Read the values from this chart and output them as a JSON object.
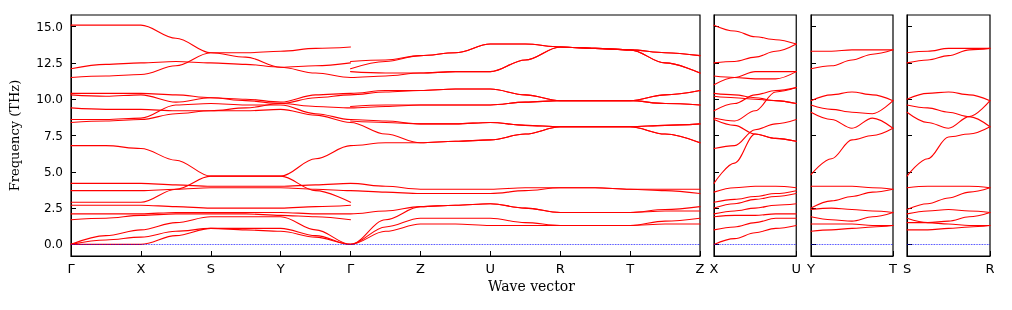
{
  "chart_data": [
    {
      "type": "line",
      "xlabel": "Wave vector",
      "ylabel": "Frequency (THz)",
      "color": "#ff0000",
      "marker": "none",
      "categories": [
        "Γ",
        null,
        "X",
        null,
        "S",
        null,
        "Y",
        null,
        "Γ",
        null,
        "Z",
        null,
        "U",
        null,
        "R",
        null,
        "T",
        null,
        "Z"
      ],
      "ylim": [
        -0.8,
        15.8
      ],
      "yticks": [
        {
          "value": 0,
          "label": "0.0"
        },
        {
          "value": 2.5,
          "label": "2.5"
        },
        {
          "value": 5,
          "label": "5.0"
        },
        {
          "value": 7.5,
          "label": "7.5"
        },
        {
          "value": 10,
          "label": "10.0"
        },
        {
          "value": 12.5,
          "label": "12.5"
        },
        {
          "value": 15,
          "label": "15.0"
        }
      ],
      "ref_lines": [
        {
          "axis": "y",
          "value": 0,
          "color": "#0000ff",
          "line_style": "dotted"
        }
      ],
      "series": [
        {
          "values": [
            0,
            0,
            0,
            0.6,
            1.1,
            1.0,
            0.9,
            0.5,
            0,
            0.9,
            1.4,
            1.4,
            1.3,
            1.3,
            1.3,
            1.3,
            1.3,
            1.4,
            1.4
          ]
        },
        {
          "values": [
            0,
            0.3,
            0.5,
            0.9,
            1.1,
            1.1,
            1.1,
            0.6,
            0,
            1.2,
            1.8,
            1.8,
            1.8,
            1.5,
            1.3,
            1.3,
            1.3,
            1.6,
            1.8
          ]
        },
        {
          "values": [
            0,
            0.6,
            1.0,
            1.5,
            1.9,
            1.9,
            1.9,
            1.0,
            0,
            1.7,
            2.6,
            2.7,
            2.8,
            2.5,
            2.2,
            2.2,
            2.2,
            2.3,
            2.3
          ]
        },
        {
          "values": [
            1.7,
            1.8,
            2.0,
            2.1,
            2.1,
            2.1,
            2.0,
            1.9,
            1.7,
            null,
            null,
            null,
            null,
            null,
            null,
            null,
            null,
            null,
            null
          ]
        },
        {
          "values": [
            2.1,
            2.1,
            2.1,
            2.2,
            2.2,
            2.2,
            2.2,
            2.1,
            2.1,
            2.3,
            2.6,
            2.7,
            2.8,
            2.5,
            2.2,
            2.2,
            2.2,
            2.4,
            2.6
          ]
        },
        {
          "values": [
            2.7,
            2.7,
            2.7,
            2.6,
            2.5,
            2.5,
            2.5,
            2.6,
            2.7,
            null,
            null,
            null,
            null,
            null,
            null,
            null,
            null,
            null,
            null
          ]
        },
        {
          "values": [
            2.9,
            2.9,
            2.9,
            3.8,
            4.7,
            4.7,
            4.7,
            3.7,
            2.9,
            null,
            null,
            null,
            null,
            null,
            null,
            null,
            null,
            null,
            null
          ]
        },
        {
          "values": [
            3.7,
            3.7,
            3.7,
            3.8,
            3.9,
            3.9,
            3.9,
            3.8,
            3.7,
            3.6,
            3.5,
            3.5,
            3.5,
            3.7,
            3.9,
            3.9,
            3.8,
            3.7,
            3.5
          ]
        },
        {
          "values": [
            4.2,
            4.2,
            4.2,
            4.1,
            4.0,
            4.0,
            4.0,
            4.1,
            4.2,
            4.0,
            3.8,
            3.8,
            3.8,
            3.9,
            3.9,
            3.9,
            3.8,
            3.8,
            3.8
          ]
        },
        {
          "values": [
            6.8,
            6.8,
            6.6,
            5.8,
            4.7,
            4.7,
            4.7,
            5.9,
            6.8,
            7.0,
            7.0,
            7.1,
            7.2,
            7.6,
            8.1,
            8.1,
            8.1,
            7.6,
            7.0
          ]
        },
        {
          "values": [
            8.4,
            8.5,
            8.6,
            9.0,
            9.2,
            9.2,
            9.3,
            8.9,
            8.4,
            7.6,
            7.0,
            7.1,
            7.2,
            7.6,
            8.1,
            8.1,
            8.1,
            7.6,
            7.0
          ]
        },
        {
          "values": [
            8.6,
            8.6,
            8.7,
            9.6,
            9.7,
            9.6,
            9.6,
            9.0,
            8.6,
            8.5,
            8.3,
            8.3,
            8.4,
            8.2,
            8.1,
            8.1,
            8.1,
            8.2,
            8.3
          ]
        },
        {
          "values": [
            9.4,
            9.3,
            9.3,
            9.2,
            9.2,
            9.4,
            9.7,
            9.5,
            9.4,
            9.5,
            9.6,
            9.6,
            9.6,
            9.8,
            9.9,
            9.9,
            9.9,
            9.7,
            9.6
          ]
        },
        {
          "values": [
            10.3,
            10.2,
            10.3,
            9.8,
            10.1,
            9.9,
            9.7,
            10.1,
            10.3,
            10.5,
            10.6,
            10.7,
            10.7,
            10.3,
            9.9,
            9.9,
            9.9,
            10.3,
            10.6
          ]
        },
        {
          "values": [
            10.4,
            10.4,
            10.4,
            10.3,
            10.1,
            10.0,
            9.8,
            10.3,
            10.4,
            10.6,
            10.6,
            10.7,
            10.7,
            10.3,
            9.9,
            9.9,
            9.9,
            9.7,
            9.6
          ]
        },
        {
          "values": [
            11.5,
            11.6,
            11.7,
            12.3,
            13.2,
            12.9,
            12.2,
            11.8,
            11.5,
            11.6,
            11.8,
            11.9,
            11.9,
            12.7,
            13.6,
            13.5,
            13.4,
            12.5,
            11.8
          ]
        },
        {
          "values": [
            12.1,
            12.4,
            12.5,
            12.6,
            12.5,
            12.4,
            12.2,
            12.3,
            12.5,
            null,
            null,
            null,
            null,
            null,
            null,
            null,
            null,
            null,
            null
          ]
        },
        {
          "values": [
            15.1,
            15.1,
            15.1,
            14.2,
            13.2,
            13.2,
            13.3,
            13.5,
            13.6,
            null,
            null,
            null,
            null,
            null,
            null,
            null,
            null,
            null,
            null
          ]
        },
        {
          "values": [
            null,
            null,
            null,
            null,
            null,
            null,
            null,
            null,
            8.5,
            8.4,
            8.3,
            8.3,
            8.4,
            8.2,
            8.1,
            8.1,
            8.1,
            8.2,
            8.3
          ]
        },
        {
          "values": [
            null,
            null,
            null,
            null,
            null,
            null,
            null,
            null,
            9.5,
            9.6,
            9.6,
            9.6,
            9.6,
            9.8,
            9.9,
            9.9,
            9.9,
            10.3,
            10.6
          ]
        },
        {
          "values": [
            null,
            null,
            null,
            null,
            null,
            null,
            null,
            null,
            11.9,
            11.8,
            11.8,
            11.9,
            11.9,
            12.7,
            13.6,
            13.5,
            13.4,
            12.5,
            11.8
          ]
        },
        {
          "values": [
            null,
            null,
            null,
            null,
            null,
            null,
            null,
            null,
            12.1,
            12.6,
            13.0,
            13.2,
            13.8,
            13.8,
            13.6,
            13.5,
            13.4,
            13.2,
            13.0
          ]
        },
        {
          "values": [
            null,
            null,
            null,
            null,
            null,
            null,
            null,
            null,
            12.6,
            12.7,
            13.0,
            13.2,
            13.8,
            13.8,
            13.6,
            13.5,
            13.4,
            13.2,
            13.0
          ]
        }
      ]
    },
    {
      "type": "line",
      "color": "#ff0000",
      "marker": "none",
      "tick_labels": "x",
      "categories": [
        "X",
        null,
        null,
        null,
        "U"
      ],
      "ylim": [
        -0.8,
        15.8
      ],
      "yticks": [
        0,
        2.5,
        5,
        7.5,
        10,
        12.5,
        15
      ],
      "ref_lines": [
        {
          "axis": "y",
          "value": 0,
          "color": "#0000ff",
          "line_style": "dotted"
        }
      ],
      "series": [
        {
          "values": [
            0,
            0.4,
            0.8,
            1.1,
            1.3
          ]
        },
        {
          "values": [
            1.0,
            1.2,
            1.5,
            1.8,
            1.8
          ]
        },
        {
          "values": [
            1.9,
            2.0,
            2.0,
            2.1,
            2.1
          ]
        },
        {
          "values": [
            2.1,
            2.3,
            2.5,
            2.7,
            2.8
          ]
        },
        {
          "values": [
            2.5,
            2.8,
            3.1,
            3.3,
            3.5
          ]
        },
        {
          "values": [
            2.9,
            3.1,
            3.3,
            3.5,
            3.7
          ]
        },
        {
          "values": [
            3.6,
            3.9,
            4.0,
            4.0,
            3.9
          ]
        },
        {
          "values": [
            4.2,
            5.6,
            7.6,
            7.3,
            7.1
          ]
        },
        {
          "values": [
            6.6,
            6.8,
            7.9,
            8.3,
            8.6
          ]
        },
        {
          "values": [
            8.6,
            8.2,
            7.6,
            7.3,
            7.1
          ]
        },
        {
          "values": [
            8.7,
            8.5,
            9.2,
            10.5,
            10.8
          ]
        },
        {
          "values": [
            9.2,
            9.7,
            10.3,
            10.6,
            10.8
          ]
        },
        {
          "values": [
            10.2,
            10.1,
            10.0,
            9.9,
            9.7
          ]
        },
        {
          "values": [
            10.4,
            10.3,
            10.1,
            9.9,
            9.7
          ]
        },
        {
          "values": [
            11.0,
            11.5,
            11.9,
            11.9,
            11.9
          ]
        },
        {
          "values": [
            11.6,
            11.5,
            11.4,
            11.4,
            11.9
          ]
        },
        {
          "values": [
            12.5,
            12.6,
            12.9,
            13.3,
            13.8
          ]
        },
        {
          "values": [
            15.1,
            14.7,
            14.3,
            14.1,
            13.8
          ]
        }
      ]
    },
    {
      "type": "line",
      "color": "#ff0000",
      "marker": "none",
      "tick_labels": "x",
      "categories": [
        "Y",
        null,
        null,
        null,
        "T"
      ],
      "ylim": [
        -0.8,
        15.8
      ],
      "yticks": [
        0,
        2.5,
        5,
        7.5,
        10,
        12.5,
        15
      ],
      "ref_lines": [
        {
          "axis": "y",
          "value": 0,
          "color": "#0000ff",
          "line_style": "dotted"
        }
      ],
      "series": [
        {
          "values": [
            0.9,
            1.0,
            1.1,
            1.2,
            1.3
          ]
        },
        {
          "values": [
            1.4,
            1.4,
            1.4,
            1.3,
            1.3
          ]
        },
        {
          "values": [
            1.9,
            1.7,
            1.6,
            1.9,
            2.2
          ]
        },
        {
          "values": [
            2.4,
            2.5,
            2.4,
            2.3,
            2.2
          ]
        },
        {
          "values": [
            2.5,
            3.0,
            3.3,
            3.6,
            3.8
          ]
        },
        {
          "values": [
            4.0,
            4.0,
            4.0,
            3.9,
            3.8
          ]
        },
        {
          "values": [
            4.8,
            5.9,
            7.2,
            7.5,
            8.0
          ]
        },
        {
          "values": [
            9.1,
            8.6,
            8.0,
            8.7,
            8.0
          ]
        },
        {
          "values": [
            9.6,
            9.3,
            9.1,
            9.0,
            9.9
          ]
        },
        {
          "values": [
            9.9,
            10.3,
            10.5,
            10.3,
            9.9
          ]
        },
        {
          "values": [
            12.1,
            12.3,
            12.7,
            13.1,
            13.4
          ]
        },
        {
          "values": [
            13.3,
            13.3,
            13.4,
            13.4,
            13.4
          ]
        }
      ]
    },
    {
      "type": "line",
      "color": "#ff0000",
      "marker": "none",
      "tick_labels": "x",
      "categories": [
        "S",
        null,
        null,
        null,
        "R"
      ],
      "ylim": [
        -0.8,
        15.8
      ],
      "yticks": [
        0,
        2.5,
        5,
        7.5,
        10,
        12.5,
        15
      ],
      "ref_lines": [
        {
          "axis": "y",
          "value": 0,
          "color": "#0000ff",
          "line_style": "dotted"
        }
      ],
      "series": [
        {
          "values": [
            1.0,
            1.0,
            1.1,
            1.2,
            1.3
          ]
        },
        {
          "values": [
            1.5,
            1.5,
            1.4,
            1.3,
            1.3
          ]
        },
        {
          "values": [
            1.8,
            1.5,
            1.6,
            1.9,
            2.2
          ]
        },
        {
          "values": [
            2.1,
            2.3,
            2.4,
            2.3,
            2.2
          ]
        },
        {
          "values": [
            2.4,
            2.8,
            3.2,
            3.6,
            3.9
          ]
        },
        {
          "values": [
            3.9,
            4.0,
            4.0,
            4.0,
            3.9
          ]
        },
        {
          "values": [
            4.7,
            5.9,
            7.4,
            7.6,
            8.1
          ]
        },
        {
          "values": [
            9.1,
            8.4,
            8.0,
            8.8,
            8.1
          ]
        },
        {
          "values": [
            9.6,
            9.4,
            9.1,
            8.8,
            9.9
          ]
        },
        {
          "values": [
            10.0,
            10.4,
            10.5,
            10.3,
            9.9
          ]
        },
        {
          "values": [
            12.5,
            12.7,
            13.0,
            13.4,
            13.5
          ]
        },
        {
          "values": [
            13.2,
            13.3,
            13.5,
            13.5,
            13.5
          ]
        }
      ]
    }
  ]
}
